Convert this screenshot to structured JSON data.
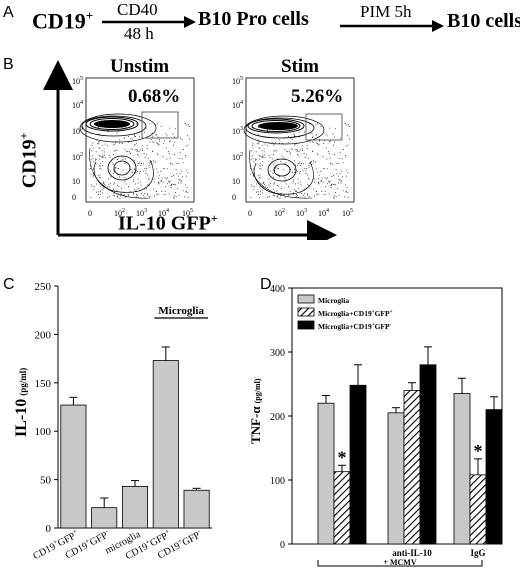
{
  "panels": {
    "A": {
      "letter": "A",
      "start": "CD19",
      "start_sup": "+",
      "arrow1_top": "CD40",
      "arrow1_bottom": "48 h",
      "mid": "B10 Pro cells",
      "arrow2_top": "PIM 5h",
      "end": "B10 cells"
    },
    "B": {
      "letter": "B",
      "ylabel": "CD19",
      "ylabel_sup": "+",
      "xlabel": "IL-10 GFP",
      "xlabel_sup": "+",
      "plots": [
        {
          "title": "Unstim",
          "percent": "0.68%"
        },
        {
          "title": "Stim",
          "percent": "5.26%"
        }
      ],
      "y_ticks": [
        "10",
        "10",
        "10",
        "10",
        "10",
        "0"
      ],
      "y_tick_exps": [
        "5",
        "4",
        "3",
        "2",
        "",
        ""
      ],
      "x_ticks": [
        "0",
        "10",
        "10",
        "10",
        "10"
      ],
      "x_tick_exps": [
        "",
        "2",
        "3",
        "4",
        "5"
      ]
    },
    "C": {
      "letter": "C",
      "annotation": "Microglia"
    },
    "D": {
      "letter": "D",
      "group_labels": [
        "anti-IL-10",
        "IgG"
      ],
      "bottom_label": "+ MCMV"
    }
  },
  "chart_data": [
    {
      "panel": "C",
      "type": "bar",
      "ylabel": "IL-10",
      "ylabel_unit": "(pg/ml)",
      "ylim": [
        0,
        250
      ],
      "yticks": [
        0,
        50,
        100,
        150,
        200,
        250
      ],
      "categories": [
        {
          "base": "CD19",
          "s1": "+",
          "mid": "GFP",
          "s2": "+"
        },
        {
          "base": "CD19",
          "s1": "+",
          "mid": "GFP",
          "s2": "-"
        },
        {
          "base": "microglia",
          "s1": "",
          "mid": "",
          "s2": ""
        },
        {
          "base": "CD19",
          "s1": "+",
          "mid": "GFP",
          "s2": "+"
        },
        {
          "base": "CD19",
          "s1": "+",
          "mid": "GFP",
          "s2": "-"
        }
      ],
      "values": [
        127,
        21,
        43,
        173,
        39
      ],
      "errors": [
        8,
        10,
        6,
        14,
        2
      ],
      "color": "#c8c8c8"
    },
    {
      "panel": "D",
      "type": "bar",
      "ylabel": "TNF-α",
      "ylabel_unit": "(pg/ml)",
      "ylim": [
        0,
        400
      ],
      "yticks": [
        0,
        100,
        200,
        300,
        400
      ],
      "groups": [
        "",
        "anti-IL-10",
        "IgG"
      ],
      "legend_position": "top-left",
      "series": [
        {
          "name": "Microglia",
          "legend_sup1": "",
          "legend_sup2": "",
          "fill": "gray",
          "values": [
            220,
            205,
            235
          ],
          "errors": [
            12,
            8,
            24
          ]
        },
        {
          "name": "Microglia+CD19",
          "legend_sup1": "+",
          "legend_mid": "GFP",
          "legend_sup2": "+",
          "fill": "hatch",
          "values": [
            113,
            240,
            108
          ],
          "errors": [
            10,
            12,
            25
          ]
        },
        {
          "name": "Microglia+CD19",
          "legend_sup1": "+",
          "legend_mid": "GFP",
          "legend_sup2": "-",
          "fill": "black",
          "values": [
            248,
            280,
            210
          ],
          "errors": [
            32,
            28,
            20
          ]
        }
      ],
      "significance": [
        {
          "series": 1,
          "group": 0,
          "mark": "*"
        },
        {
          "series": 1,
          "group": 2,
          "mark": "*"
        }
      ]
    }
  ]
}
